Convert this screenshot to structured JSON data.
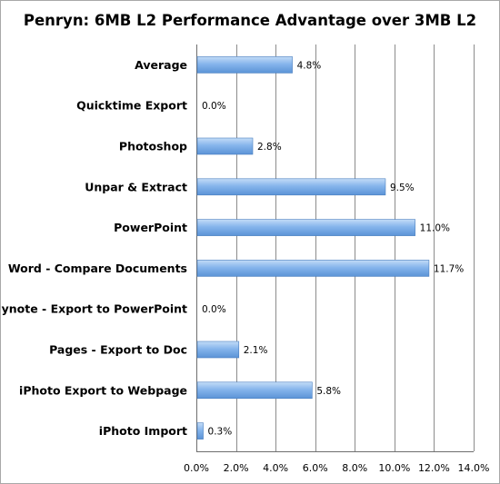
{
  "chart_data": {
    "type": "bar",
    "orientation": "horizontal",
    "title": "Penryn: 6MB L2 Performance Advantage over 3MB L2",
    "xlabel": "",
    "ylabel": "",
    "xlim": [
      0,
      14
    ],
    "x_ticks": [
      0,
      2,
      4,
      6,
      8,
      10,
      12,
      14
    ],
    "x_tick_labels": [
      "0.0%",
      "2.0%",
      "4.0%",
      "6.0%",
      "8.0%",
      "10.0%",
      "12.0%",
      "14.0%"
    ],
    "grid": "vertical",
    "legend": "none",
    "categories": [
      "Average",
      "Quicktime Export",
      "Photoshop",
      "Unpar & Extract",
      "PowerPoint",
      "Word - Compare Documents",
      "Keynote - Export to PowerPoint",
      "Pages - Export to Doc",
      "iPhoto Export to Webpage",
      "iPhoto Import"
    ],
    "values": [
      4.8,
      0.0,
      2.8,
      9.5,
      11.0,
      11.7,
      0.0,
      2.1,
      5.8,
      0.3
    ],
    "value_labels": [
      "4.8%",
      "0.0%",
      "2.8%",
      "9.5%",
      "11.0%",
      "11.7%",
      "0.0%",
      "2.1%",
      "5.8%",
      "0.3%"
    ],
    "colors": {
      "bar_top": "#c3dcf7",
      "bar_mid": "#86b5ec",
      "bar_bottom": "#5b93d6",
      "bar_edge": "#4a7fbf"
    }
  }
}
